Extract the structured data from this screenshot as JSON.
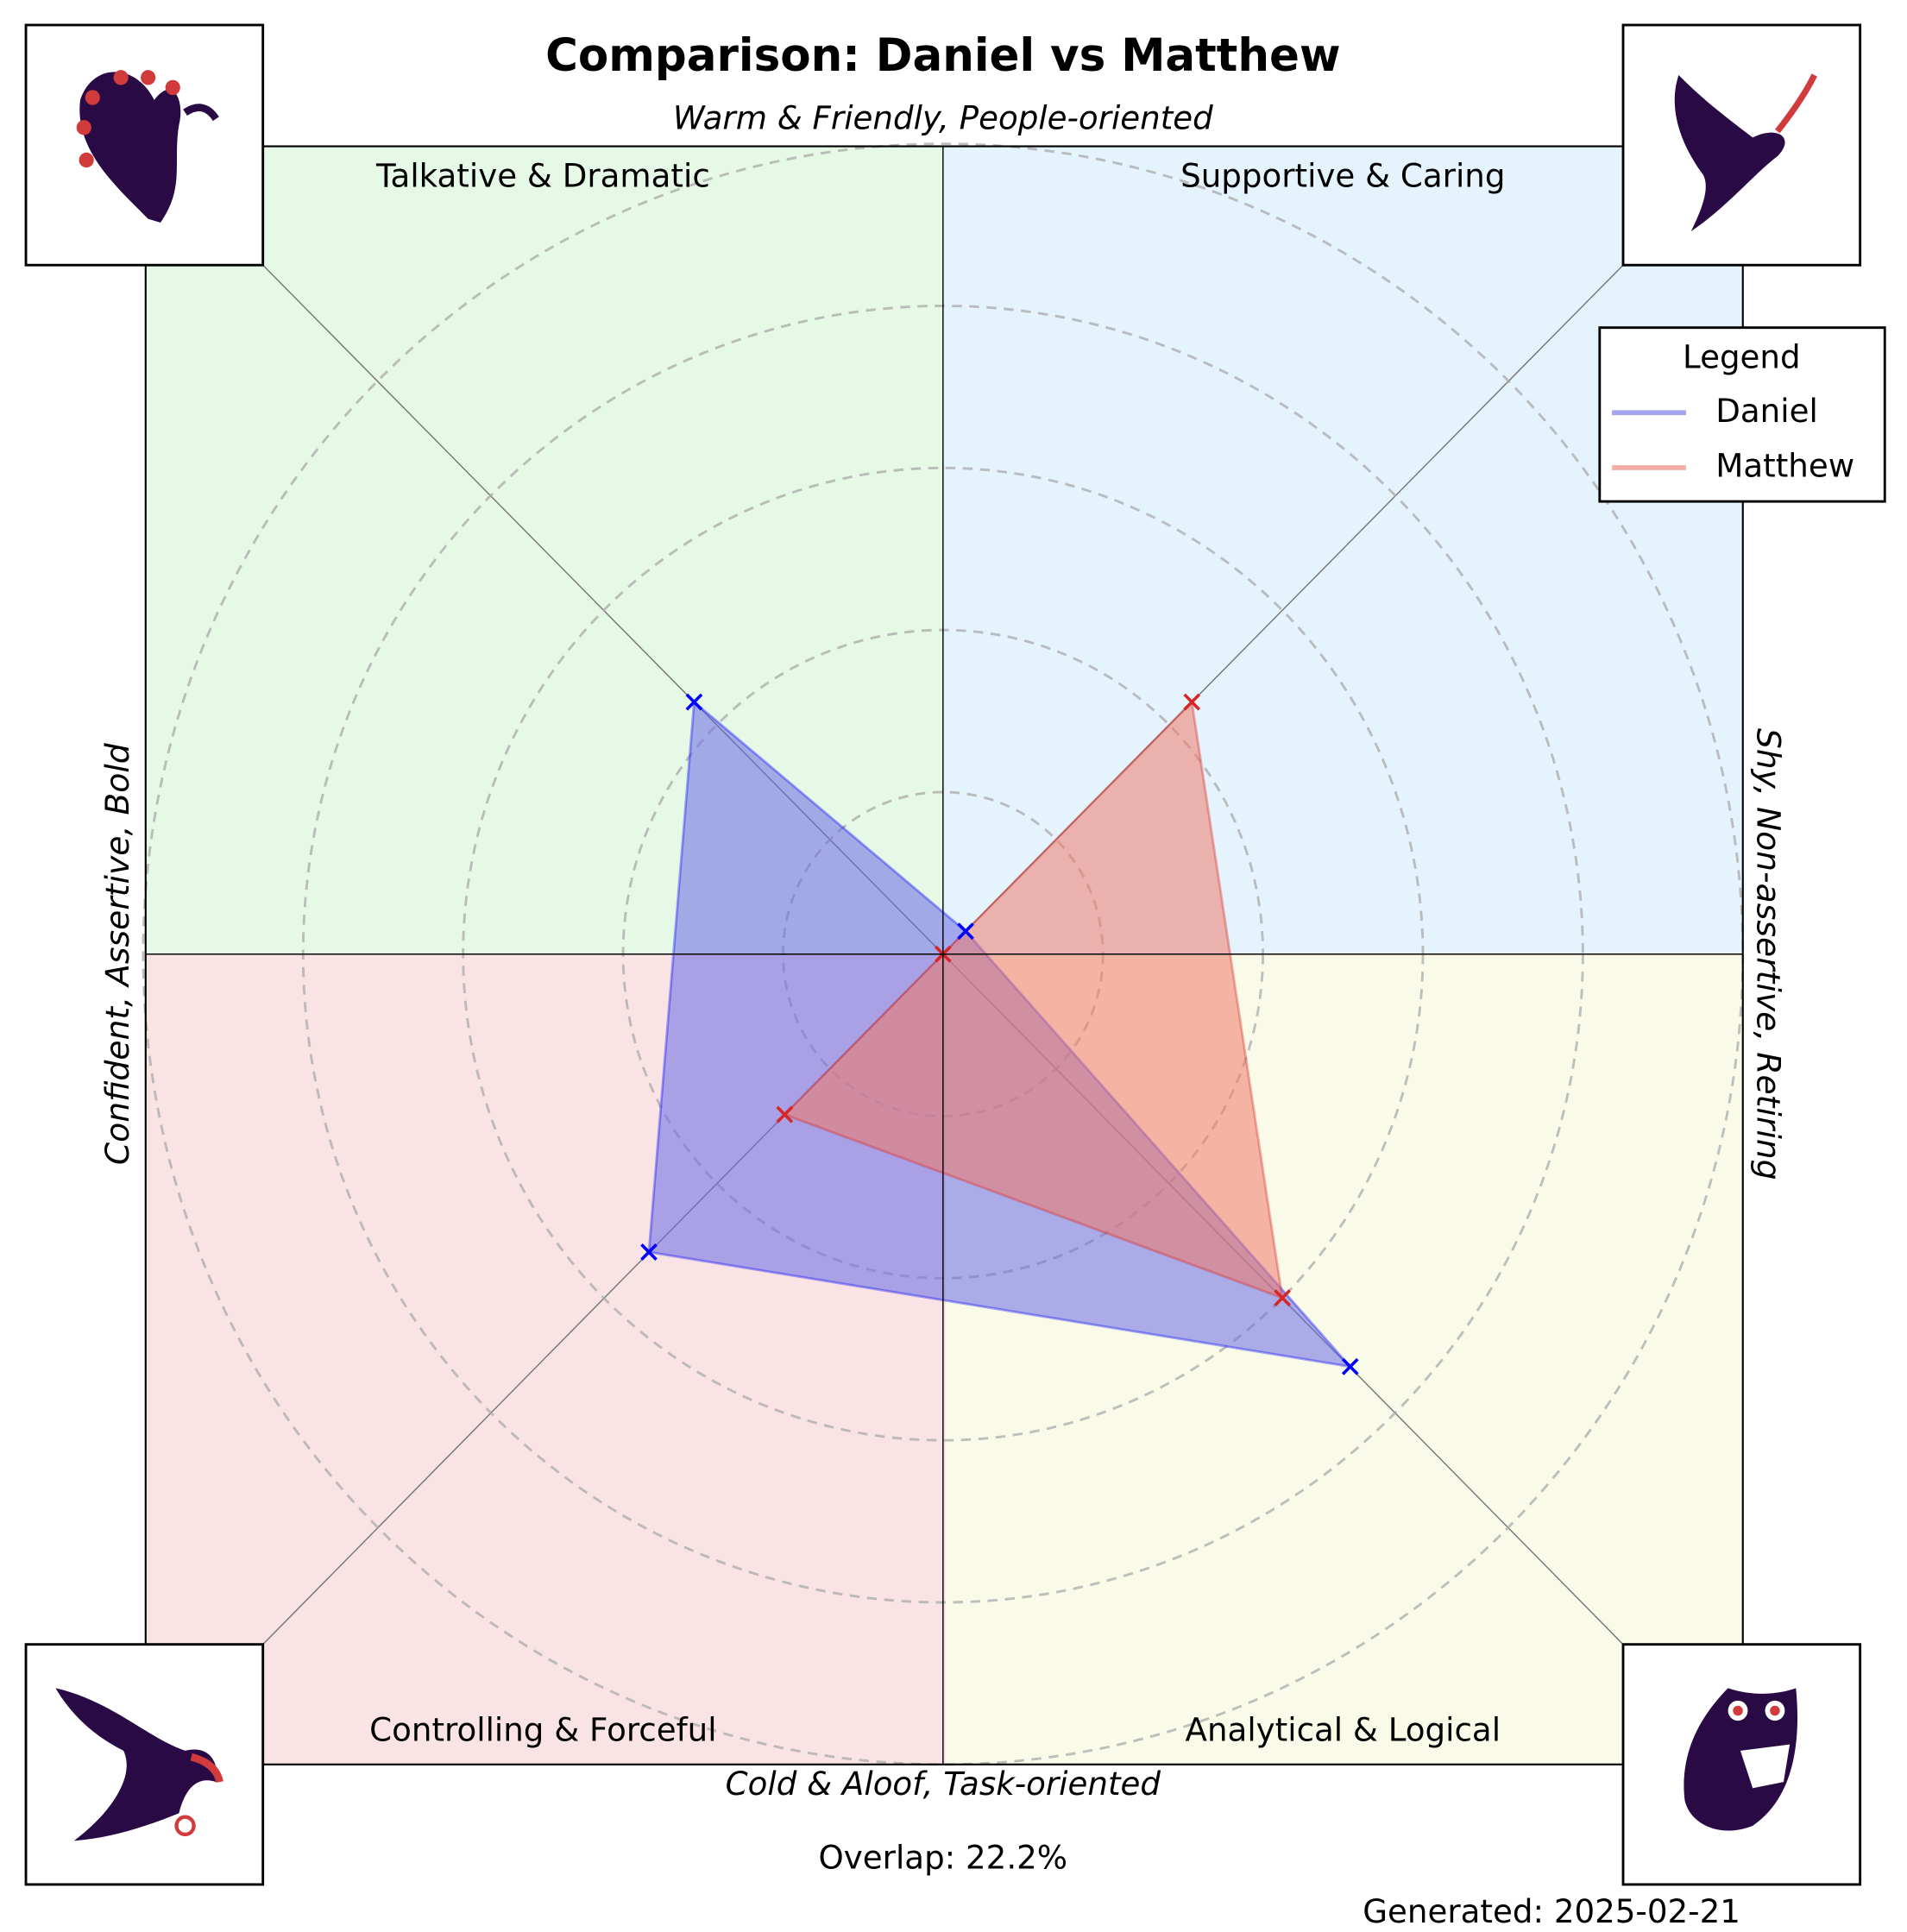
{
  "chart_data": {
    "type": "radar",
    "title": "Comparison: Daniel vs Matthew",
    "top_label": "Warm & Friendly, People-oriented",
    "bottom_label": "Cold & Aloof, Task-oriented",
    "left_label": "Confident, Assertive, Bold",
    "right_label": "Shy, Non-assertive, Retiring",
    "categories": [
      "Talkative & Dramatic",
      "Supportive & Caring",
      "Analytical & Logical",
      "Controlling & Forceful"
    ],
    "quadrant_colors": [
      "#e6f8e6",
      "#e5f3fd",
      "#fafae9",
      "#f9e3e4"
    ],
    "series": [
      {
        "name": "Daniel",
        "color": "#0000ff",
        "fill": "#6a6ae6",
        "values": [
          2.2,
          0.2,
          3.6,
          2.6
        ]
      },
      {
        "name": "Matthew",
        "color": "#d62728",
        "fill": "#f07a6a",
        "values": [
          0,
          2.2,
          3.0,
          1.4
        ]
      }
    ],
    "rlim": [
      0,
      5
    ],
    "rticks": [
      1,
      2,
      3,
      4,
      5
    ],
    "legend_title": "Legend",
    "legend": "upper right",
    "annotations": [
      "Overlap: 22.2%",
      "Generated: 2025-02-21"
    ]
  }
}
